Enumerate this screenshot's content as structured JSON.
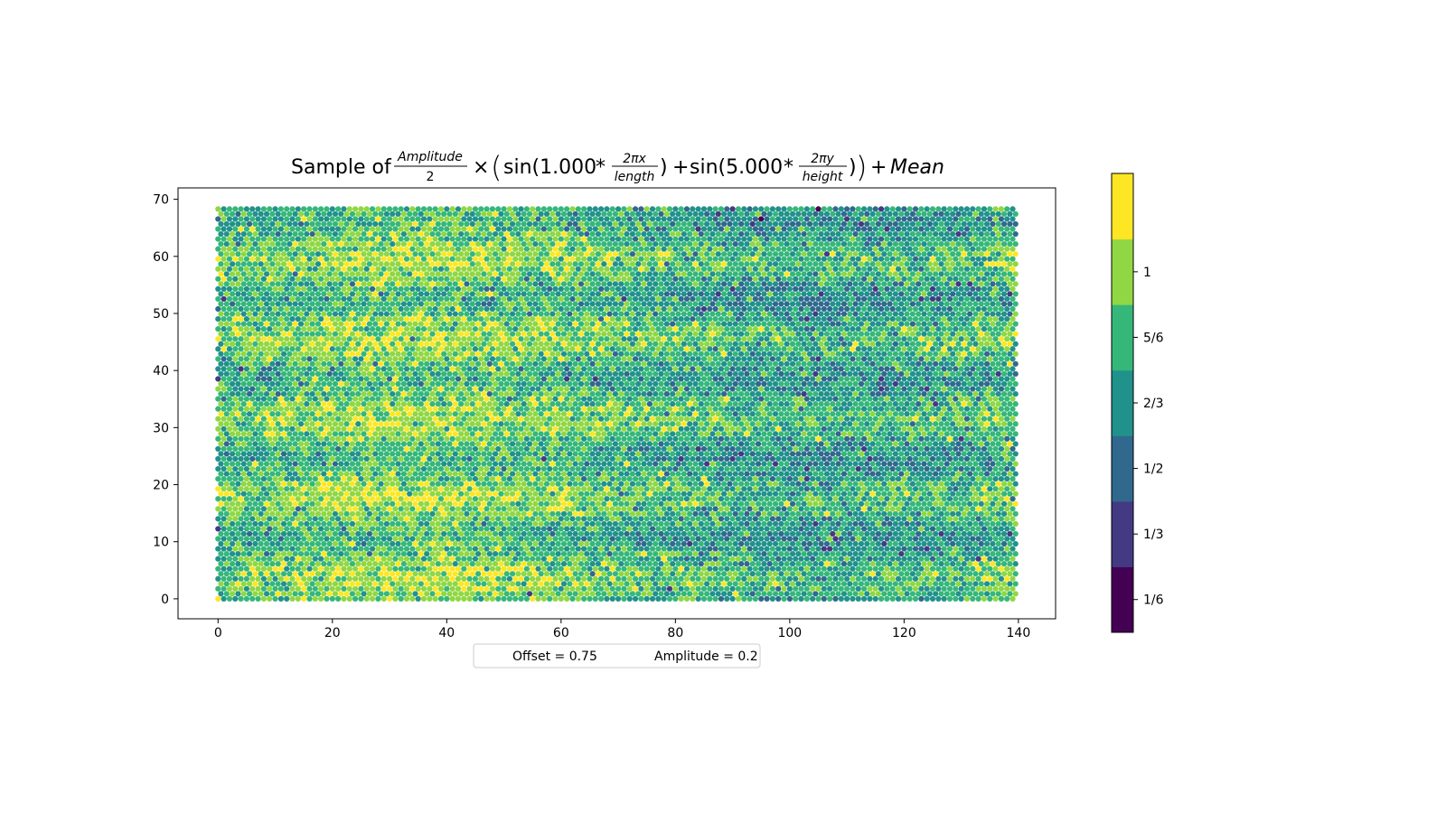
{
  "chart_data": {
    "type": "scatter",
    "title": {
      "prefix": "Sample of",
      "amp_num": "Amplitude",
      "amp_den": "2",
      "times": "×",
      "sin1_head": "sin(1.000",
      "frac_x_num": "2πx",
      "frac_x_den": "length",
      "sin2_head": "sin(5.000",
      "frac_y_num": "2πy",
      "frac_y_den": "height",
      "star": "*",
      "close": ")",
      "plus": "+",
      "mean": "Mean"
    },
    "xlabel": "",
    "ylabel": "",
    "xlim": [
      -7,
      146.5
    ],
    "ylim": [
      -3.5,
      72
    ],
    "x_ticks": [
      "0",
      "20",
      "40",
      "60",
      "80",
      "100",
      "120",
      "140"
    ],
    "y_ticks": [
      "0",
      "10",
      "20",
      "30",
      "40",
      "50",
      "60",
      "70"
    ],
    "grid": {
      "x_range": [
        0,
        139.5
      ],
      "y_range": [
        0,
        68.3
      ],
      "columns": 140,
      "rows": 79,
      "layout": "hexagonal"
    },
    "formula": {
      "x_frequency": 1.0,
      "y_frequency": 5.0,
      "mean": 0.75,
      "amplitude": 0.2
    },
    "colorbar": {
      "colormap": "viridis",
      "levels": 7,
      "colors": [
        "#440154",
        "#443983",
        "#31688e",
        "#21918c",
        "#35b779",
        "#90d743",
        "#fde725"
      ],
      "tick_labels": [
        "1/6",
        "1/3",
        "1/2",
        "2/3",
        "5/6",
        "1"
      ]
    },
    "legend": {
      "placement": "bottom-center",
      "entries": [
        "Offset = 0.75",
        "Amplitude = 0.2"
      ]
    }
  }
}
